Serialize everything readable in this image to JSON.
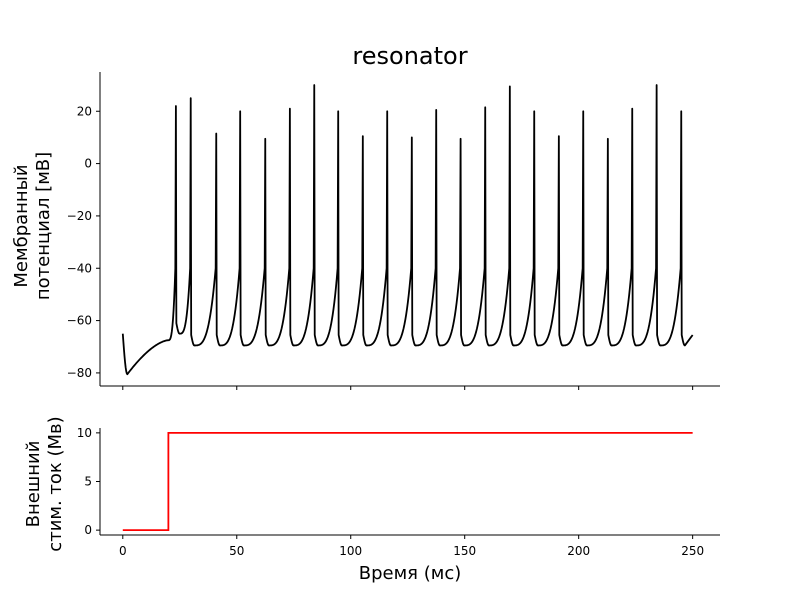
{
  "chart_data": [
    {
      "type": "line",
      "title": "resonator",
      "xlabel": "",
      "ylabel_line1": "Мембранный",
      "ylabel_line2": "потенциал [мВ]",
      "xlim": [
        -10,
        262
      ],
      "ylim": [
        -85,
        35
      ],
      "yticks": [
        -80,
        -60,
        -40,
        -20,
        0,
        20
      ],
      "xticks": [
        0,
        50,
        100,
        150,
        200,
        250
      ],
      "show_xticklabels": false,
      "line_color": "#000000",
      "rest_start": -65,
      "rest_min": -80.5,
      "rest_min_t": 2,
      "pre_spike_level": -67.5,
      "trough": -69.5,
      "stim_onset": 20,
      "t_end": 250,
      "end_value": -65.5,
      "spike_times": [
        23.3,
        29.8,
        41.0,
        51.5,
        62.5,
        73.3,
        84.0,
        94.5,
        105.3,
        116.0,
        126.8,
        137.5,
        148.2,
        159.0,
        169.8,
        180.5,
        191.3,
        202.0,
        212.8,
        223.5,
        234.2,
        245.0
      ],
      "spike_peaks": [
        22,
        25,
        11.5,
        20,
        9.5,
        21,
        30,
        20,
        10.5,
        20,
        10,
        20.5,
        9.5,
        21.5,
        29.5,
        20,
        10.5,
        20,
        9.5,
        21,
        30,
        20
      ]
    },
    {
      "type": "line",
      "title": "",
      "xlabel": "Время (мс)",
      "ylabel_line1": "Внешний",
      "ylabel_line2": "стим. ток (Мв)",
      "xlim": [
        -10,
        262
      ],
      "ylim": [
        -0.5,
        10.5
      ],
      "yticks": [
        0,
        5,
        10
      ],
      "xticks": [
        0,
        50,
        100,
        150,
        200,
        250
      ],
      "show_xticklabels": true,
      "line_color": "#ff0000",
      "x": [
        0,
        20,
        20,
        250
      ],
      "y": [
        0,
        0,
        10,
        10
      ]
    }
  ]
}
